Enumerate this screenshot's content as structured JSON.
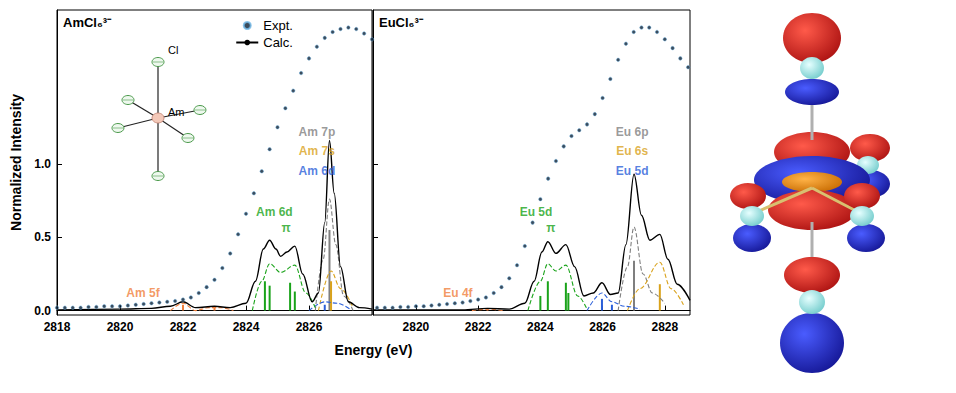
{
  "chart_data": [
    {
      "type": "line",
      "title": "AmCl₆³⁻",
      "xlabel": "Energy (eV)",
      "ylabel": "Normalized Intensity",
      "xlim": [
        2818,
        2828
      ],
      "xticks": [
        2818,
        2820,
        2822,
        2824,
        2826
      ],
      "ylim": [
        -0.03,
        2.05
      ],
      "yticks": [
        {
          "value": 0,
          "label": "0.0"
        },
        {
          "value": 0.5,
          "label": "0.5"
        },
        {
          "value": 1,
          "label": "1.0"
        }
      ],
      "legend": "top",
      "series": [
        {
          "name": "Expt.",
          "type": "scatter",
          "marker": "dot",
          "color": "#0b1f33",
          "values": [
            [
              2818,
              0.02
            ],
            [
              2818.25,
              0.02
            ],
            [
              2818.5,
              0.02
            ],
            [
              2818.75,
              0.02
            ],
            [
              2819,
              0.025
            ],
            [
              2819.25,
              0.025
            ],
            [
              2819.5,
              0.03
            ],
            [
              2819.75,
              0.03
            ],
            [
              2820,
              0.03
            ],
            [
              2820.25,
              0.035
            ],
            [
              2820.5,
              0.04
            ],
            [
              2820.75,
              0.045
            ],
            [
              2821,
              0.05
            ],
            [
              2821.25,
              0.055
            ],
            [
              2821.5,
              0.06
            ],
            [
              2821.75,
              0.065
            ],
            [
              2822,
              0.075
            ],
            [
              2822.25,
              0.09
            ],
            [
              2822.5,
              0.12
            ],
            [
              2822.75,
              0.16
            ],
            [
              2823,
              0.21
            ],
            [
              2823.25,
              0.29
            ],
            [
              2823.5,
              0.39
            ],
            [
              2823.75,
              0.52
            ],
            [
              2824,
              0.66
            ],
            [
              2824.25,
              0.8
            ],
            [
              2824.5,
              0.95
            ],
            [
              2824.75,
              1.1
            ],
            [
              2825,
              1.25
            ],
            [
              2825.25,
              1.38
            ],
            [
              2825.5,
              1.5
            ],
            [
              2825.75,
              1.62
            ],
            [
              2826,
              1.72
            ],
            [
              2826.25,
              1.8
            ],
            [
              2826.5,
              1.86
            ],
            [
              2826.75,
              1.9
            ],
            [
              2827,
              1.92
            ],
            [
              2827.25,
              1.93
            ],
            [
              2827.5,
              1.92
            ],
            [
              2827.75,
              1.89
            ],
            [
              2828,
              1.85
            ]
          ]
        },
        {
          "name": "Calc.",
          "type": "line",
          "line_style": "solid",
          "color": "#000000",
          "values": [
            [
              2818,
              0.005
            ],
            [
              2820,
              0.01
            ],
            [
              2821,
              0.015
            ],
            [
              2821.6,
              0.03
            ],
            [
              2822,
              0.06
            ],
            [
              2822.4,
              0.02
            ],
            [
              2823,
              0.03
            ],
            [
              2823.5,
              0.02
            ],
            [
              2824,
              0.05
            ],
            [
              2824.3,
              0.2
            ],
            [
              2824.55,
              0.42
            ],
            [
              2824.75,
              0.48
            ],
            [
              2824.95,
              0.42
            ],
            [
              2825.1,
              0.37
            ],
            [
              2825.3,
              0.4
            ],
            [
              2825.55,
              0.44
            ],
            [
              2825.8,
              0.25
            ],
            [
              2826.1,
              0.06
            ],
            [
              2826.3,
              0.12
            ],
            [
              2826.5,
              0.6
            ],
            [
              2826.65,
              1.16
            ],
            [
              2826.8,
              0.8
            ],
            [
              2827,
              0.3
            ],
            [
              2827.25,
              0.06
            ],
            [
              2827.6,
              0.02
            ],
            [
              2828,
              0.01
            ]
          ]
        },
        {
          "type": "line",
          "line_style": "dashed",
          "color": "#7f7f7f",
          "values": [
            [
              2826.2,
              0
            ],
            [
              2826.45,
              0.35
            ],
            [
              2826.65,
              0.76
            ],
            [
              2826.85,
              0.45
            ],
            [
              2827.1,
              0.1
            ],
            [
              2827.4,
              0
            ]
          ],
          "sticks": [
            [
              2826.65,
              0.55
            ]
          ]
        },
        {
          "type": "line",
          "line_style": "dashed",
          "color": "#d9a21b",
          "values": [
            [
              2826.3,
              0
            ],
            [
              2826.7,
              0.27
            ],
            [
              2827,
              0.15
            ],
            [
              2827.4,
              0.02
            ]
          ],
          "sticks": [
            [
              2826.7,
              0.2
            ]
          ]
        },
        {
          "type": "line",
          "line_style": "dashed",
          "color": "#2b5fd9",
          "values": [
            [
              2826,
              0
            ],
            [
              2826.5,
              0.06
            ],
            [
              2826.9,
              0.05
            ],
            [
              2827.3,
              0.01
            ]
          ],
          "sticks": [
            [
              2826.5,
              0.04
            ]
          ]
        },
        {
          "type": "line",
          "line_style": "dashed",
          "color": "#1aa31a",
          "values": [
            [
              2824.2,
              0
            ],
            [
              2824.5,
              0.2
            ],
            [
              2824.75,
              0.32
            ],
            [
              2825.1,
              0.26
            ],
            [
              2825.55,
              0.31
            ],
            [
              2825.9,
              0.12
            ],
            [
              2826.2,
              0.02
            ]
          ],
          "sticks": [
            [
              2824.6,
              0.2
            ],
            [
              2824.75,
              0.17
            ],
            [
              2825.4,
              0.19
            ],
            [
              2825.55,
              0.13
            ]
          ]
        },
        {
          "type": "line",
          "line_style": "dashed",
          "color": "#f07f3c",
          "values": [
            [
              2821.6,
              0
            ],
            [
              2822,
              0.05
            ],
            [
              2822.4,
              0
            ],
            [
              2822.8,
              0.02
            ],
            [
              2823.2,
              0.02
            ],
            [
              2823.6,
              0
            ]
          ],
          "sticks": [
            [
              2822,
              0.04
            ],
            [
              2823,
              0.02
            ]
          ]
        }
      ],
      "annotations": [
        {
          "text": "Am 7p",
          "color": "#7f7f7f",
          "x": 2826.25,
          "y": 1.22
        },
        {
          "text": "Am 7s",
          "color": "#d9a21b",
          "x": 2826.25,
          "y": 1.09
        },
        {
          "text": "Am 6d",
          "color": "#2b5fd9",
          "x": 2826.25,
          "y": 0.95
        },
        {
          "text": "Am 6d",
          "color": "#1aa31a",
          "x": 2824.9,
          "y": 0.67
        },
        {
          "text": "π",
          "color": "#1aa31a",
          "x": 2825.27,
          "y": 0.56
        },
        {
          "text": "Am 5f",
          "color": "#f07f3c",
          "x": 2820.73,
          "y": 0.12
        }
      ]
    },
    {
      "type": "line",
      "title": "EuCl₆³⁻",
      "xlim": [
        2818.62,
        2828.81
      ],
      "xticks": [
        2820,
        2822,
        2824,
        2826,
        2828
      ],
      "ylim": [
        -0.03,
        2.05
      ],
      "yticks": [
        0,
        0.5,
        1
      ],
      "tick_labels": "x",
      "series": [
        {
          "name": "Expt.",
          "type": "scatter",
          "marker": "dot",
          "color": "#0b1f33",
          "values": [
            [
              2818.75,
              0.02
            ],
            [
              2819,
              0.02
            ],
            [
              2819.25,
              0.02
            ],
            [
              2819.5,
              0.025
            ],
            [
              2819.75,
              0.025
            ],
            [
              2820,
              0.03
            ],
            [
              2820.25,
              0.03
            ],
            [
              2820.5,
              0.035
            ],
            [
              2820.75,
              0.04
            ],
            [
              2821,
              0.045
            ],
            [
              2821.25,
              0.05
            ],
            [
              2821.5,
              0.055
            ],
            [
              2821.75,
              0.065
            ],
            [
              2822,
              0.075
            ],
            [
              2822.25,
              0.09
            ],
            [
              2822.5,
              0.12
            ],
            [
              2822.75,
              0.16
            ],
            [
              2823,
              0.22
            ],
            [
              2823.25,
              0.31
            ],
            [
              2823.5,
              0.44
            ],
            [
              2823.75,
              0.6
            ],
            [
              2824,
              0.76
            ],
            [
              2824.25,
              0.9
            ],
            [
              2824.5,
              1.02
            ],
            [
              2824.75,
              1.12
            ],
            [
              2825,
              1.19
            ],
            [
              2825.25,
              1.23
            ],
            [
              2825.5,
              1.27
            ],
            [
              2825.75,
              1.34
            ],
            [
              2826,
              1.45
            ],
            [
              2826.25,
              1.58
            ],
            [
              2826.5,
              1.71
            ],
            [
              2826.75,
              1.82
            ],
            [
              2827,
              1.9
            ],
            [
              2827.25,
              1.93
            ],
            [
              2827.5,
              1.93
            ],
            [
              2827.75,
              1.9
            ],
            [
              2828,
              1.85
            ],
            [
              2828.25,
              1.79
            ],
            [
              2828.5,
              1.72
            ],
            [
              2828.75,
              1.66
            ]
          ]
        },
        {
          "name": "Calc.",
          "type": "line",
          "line_style": "solid",
          "color": "#000000",
          "values": [
            [
              2818.62,
              0.005
            ],
            [
              2820,
              0.005
            ],
            [
              2821.5,
              0.005
            ],
            [
              2822.3,
              0.015
            ],
            [
              2823,
              0.01
            ],
            [
              2823.5,
              0.05
            ],
            [
              2823.8,
              0.2
            ],
            [
              2824.05,
              0.4
            ],
            [
              2824.24,
              0.47
            ],
            [
              2824.5,
              0.39
            ],
            [
              2824.82,
              0.45
            ],
            [
              2825.1,
              0.3
            ],
            [
              2825.4,
              0.1
            ],
            [
              2825.7,
              0.12
            ],
            [
              2825.98,
              0.19
            ],
            [
              2826.25,
              0.11
            ],
            [
              2826.5,
              0.12
            ],
            [
              2826.75,
              0.45
            ],
            [
              2827.01,
              0.93
            ],
            [
              2827.25,
              0.65
            ],
            [
              2827.52,
              0.48
            ],
            [
              2827.84,
              0.52
            ],
            [
              2828.1,
              0.35
            ],
            [
              2828.4,
              0.18
            ],
            [
              2828.81,
              0.07
            ]
          ]
        },
        {
          "type": "line",
          "line_style": "dashed",
          "color": "#7f7f7f",
          "values": [
            [
              2826.5,
              0
            ],
            [
              2826.8,
              0.3
            ],
            [
              2827.01,
              0.57
            ],
            [
              2827.3,
              0.25
            ],
            [
              2827.6,
              0.12
            ],
            [
              2828,
              0.05
            ]
          ],
          "sticks": [
            [
              2827.01,
              0.34
            ]
          ]
        },
        {
          "type": "line",
          "line_style": "dashed",
          "color": "#d9a21b",
          "values": [
            [
              2826.8,
              0
            ],
            [
              2827.2,
              0.15
            ],
            [
              2827.84,
              0.33
            ],
            [
              2828.2,
              0.15
            ],
            [
              2828.6,
              0.04
            ]
          ],
          "sticks": [
            [
              2827.84,
              0.18
            ]
          ]
        },
        {
          "type": "line",
          "line_style": "dashed",
          "color": "#2b5fd9",
          "values": [
            [
              2825.5,
              0
            ],
            [
              2825.98,
              0.12
            ],
            [
              2826.3,
              0.06
            ],
            [
              2826.7,
              0.03
            ],
            [
              2827.2,
              0.01
            ]
          ],
          "sticks": [
            [
              2825.98,
              0.08
            ],
            [
              2826.3,
              0.04
            ]
          ]
        },
        {
          "type": "line",
          "line_style": "dashed",
          "color": "#1aa31a",
          "values": [
            [
              2823.6,
              0
            ],
            [
              2824,
              0.2
            ],
            [
              2824.24,
              0.32
            ],
            [
              2824.5,
              0.27
            ],
            [
              2824.82,
              0.31
            ],
            [
              2825.2,
              0.1
            ],
            [
              2825.5,
              0.01
            ]
          ],
          "sticks": [
            [
              2824,
              0.1
            ],
            [
              2824.24,
              0.2
            ],
            [
              2824.82,
              0.19
            ],
            [
              2824.9,
              0.12
            ]
          ]
        },
        {
          "type": "line",
          "line_style": "dashed",
          "color": "#f07f3c",
          "values": [
            [
              2821.8,
              0
            ],
            [
              2822.3,
              0.01
            ],
            [
              2822.8,
              0
            ]
          ],
          "sticks": [
            [
              2822.3,
              0.01
            ]
          ]
        }
      ],
      "annotations": [
        {
          "text": "Eu 6p",
          "color": "#7f7f7f",
          "x": 2826.95,
          "y": 1.22
        },
        {
          "text": "Eu 6s",
          "color": "#d9a21b",
          "x": 2826.95,
          "y": 1.09
        },
        {
          "text": "Eu 5d",
          "color": "#2b5fd9",
          "x": 2826.95,
          "y": 0.95
        },
        {
          "text": "Eu 5d",
          "color": "#1aa31a",
          "x": 2823.86,
          "y": 0.67
        },
        {
          "text": "π",
          "color": "#1aa31a",
          "x": 2824.34,
          "y": 0.56
        },
        {
          "text": "Eu 4f",
          "color": "#f07f3c",
          "x": 2821.35,
          "y": 0.12
        }
      ]
    }
  ],
  "inset": {
    "metal": "Am",
    "ligand": "Cl"
  }
}
